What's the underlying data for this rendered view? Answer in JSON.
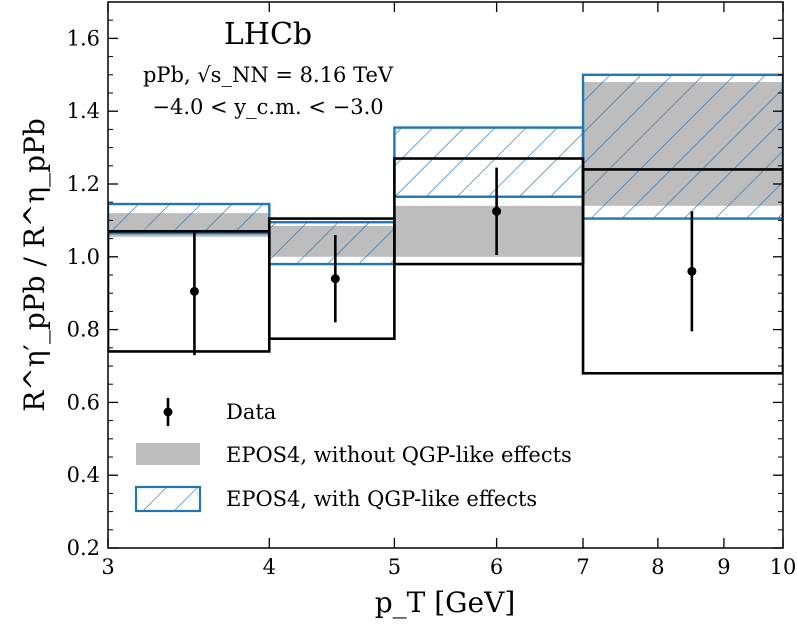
{
  "chart_data": {
    "type": "step-bands",
    "title": "LHCb",
    "subtitle_lines": [
      "pPb, √s_NN = 8.16 TeV",
      "−4.0 < y_c.m. < −3.0"
    ],
    "xlabel": "p_T [GeV]",
    "ylabel": "R^η′_pPb / R^η_pPb",
    "xscale": "log",
    "xlim": [
      3,
      10
    ],
    "ylim": [
      0.2,
      1.7
    ],
    "x_ticks": [
      3,
      4,
      5,
      6,
      7,
      8,
      9,
      10
    ],
    "y_ticks": [
      0.2,
      0.4,
      0.6,
      0.8,
      1.0,
      1.2,
      1.4,
      1.6
    ],
    "legend_placement": "lower-left",
    "colors": {
      "data": "#000000",
      "without": "#bdbdbd",
      "with": "#1f77b4",
      "syst": "#000000"
    },
    "legend": [
      {
        "label": "Data",
        "key": "data"
      },
      {
        "label": "EPOS4, without QGP-like effects",
        "key": "without"
      },
      {
        "label": "EPOS4, with QGP-like effects",
        "key": "with"
      }
    ],
    "bins": [
      {
        "xlow": 3,
        "xhigh": 4,
        "x": 3.5,
        "y": 0.905,
        "stat_low": 0.73,
        "stat_high": 1.07,
        "syst_low": 0.74,
        "syst_high": 1.07,
        "epos_without": [
          1.055,
          1.12
        ],
        "epos_with": [
          1.065,
          1.145
        ]
      },
      {
        "xlow": 4,
        "xhigh": 5,
        "x": 4.5,
        "y": 0.94,
        "stat_low": 0.82,
        "stat_high": 1.06,
        "syst_low": 0.775,
        "syst_high": 1.105,
        "epos_without": [
          1.0,
          1.085
        ],
        "epos_with": [
          0.98,
          1.095
        ]
      },
      {
        "xlow": 5,
        "xhigh": 7,
        "x": 6.0,
        "y": 1.125,
        "stat_low": 1.005,
        "stat_high": 1.245,
        "syst_low": 0.98,
        "syst_high": 1.27,
        "epos_without": [
          1.0,
          1.14
        ],
        "epos_with": [
          1.165,
          1.355
        ]
      },
      {
        "xlow": 7,
        "xhigh": 10,
        "x": 8.5,
        "y": 0.96,
        "stat_low": 0.795,
        "stat_high": 1.125,
        "syst_low": 0.68,
        "syst_high": 1.24,
        "epos_without": [
          1.14,
          1.48
        ],
        "epos_with": [
          1.105,
          1.5
        ]
      }
    ]
  }
}
